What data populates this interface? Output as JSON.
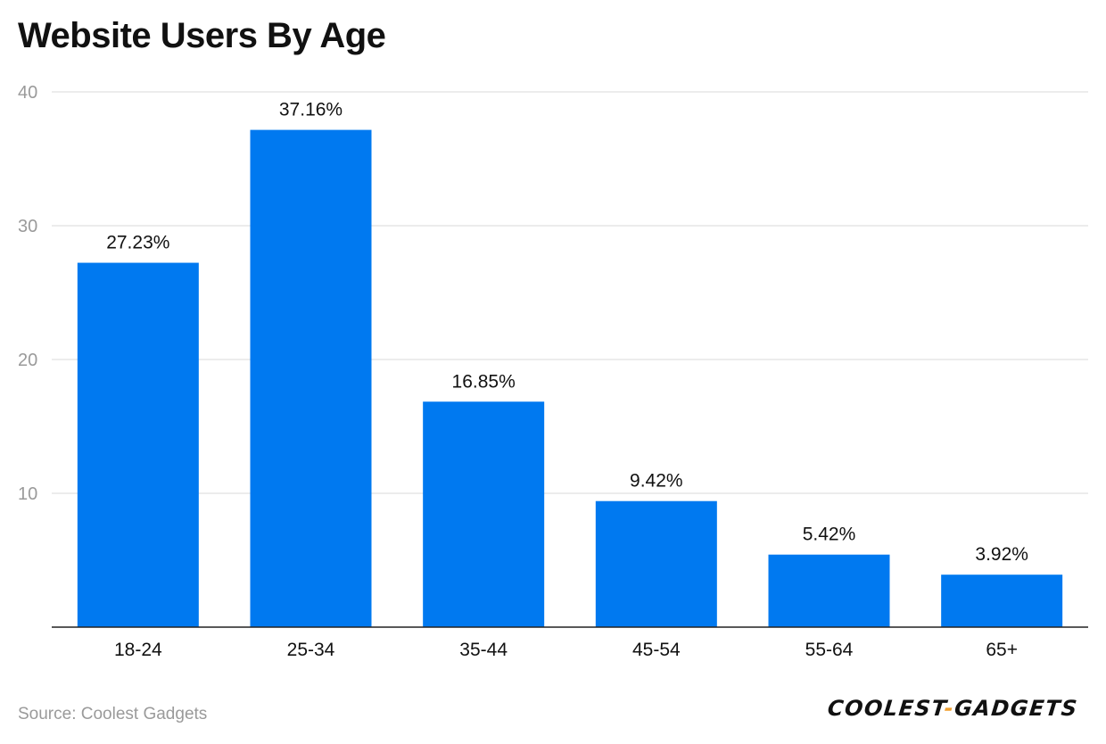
{
  "title": "Website Users By Age",
  "source": "Source: Coolest Gadgets",
  "brand": {
    "part1": "COOLEST",
    "separator": "-",
    "part2": "GADGETS",
    "accent_color": "#f0a030"
  },
  "colors": {
    "bar": "#0079f0",
    "grid": "#d9d9d9",
    "tick_text": "#9a9a9a",
    "label_text": "#111111"
  },
  "chart_data": {
    "type": "bar",
    "categories": [
      "18-24",
      "25-34",
      "35-44",
      "45-54",
      "55-64",
      "65+"
    ],
    "values": [
      27.23,
      37.16,
      16.85,
      9.42,
      5.42,
      3.92
    ],
    "data_labels": [
      "27.23%",
      "37.16%",
      "16.85%",
      "9.42%",
      "5.42%",
      "3.92%"
    ],
    "title": "Website Users By Age",
    "xlabel": "",
    "ylabel": "",
    "ylim": [
      0,
      40
    ],
    "yticks": [
      10,
      20,
      30,
      40
    ],
    "grid": true,
    "legend": "none"
  }
}
